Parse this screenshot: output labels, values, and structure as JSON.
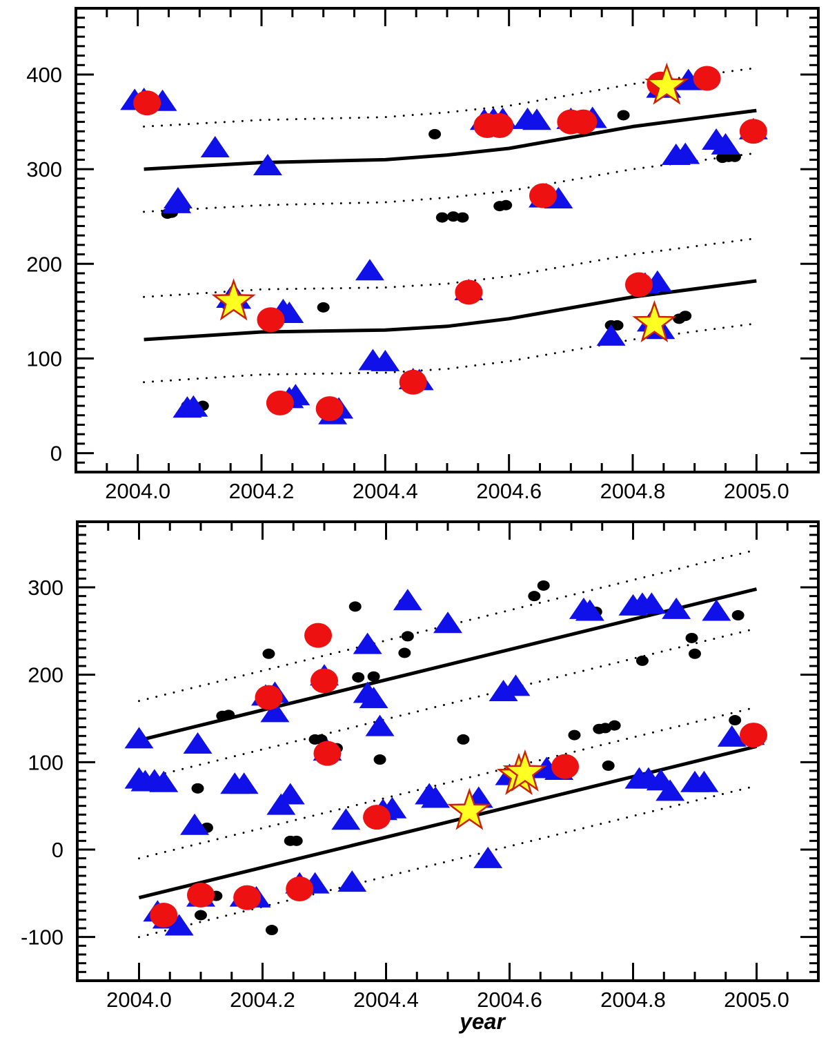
{
  "chart_data": [
    {
      "type": "scatter",
      "title": "",
      "xlabel": "",
      "ylabel": "",
      "xlim": [
        2003.9,
        2005.1
      ],
      "ylim": [
        -20,
        470
      ],
      "x_ticks": [
        "2004.0",
        "2004.2",
        "2004.4",
        "2004.6",
        "2004.8",
        "2005.0"
      ],
      "y_ticks": [
        "0",
        "100",
        "200",
        "300",
        "400"
      ],
      "y_tick_values": [
        0,
        100,
        200,
        300,
        400
      ],
      "x_tick_values": [
        2004.0,
        2004.2,
        2004.4,
        2004.6,
        2004.8,
        2005.0
      ],
      "colors": {
        "triangle": "#1010e8",
        "circle": "#ee1111",
        "star_fill": "#ffff22",
        "star_edge": "#cc2200",
        "dot": "#000000"
      },
      "lines": [
        {
          "name": "fit-upper",
          "style": "solid",
          "x": [
            2004.01,
            2004.2,
            2004.4,
            2004.5,
            2004.6,
            2004.8,
            2005.0
          ],
          "y": [
            300,
            307,
            310,
            315,
            322,
            345,
            362
          ]
        },
        {
          "name": "fit-lower",
          "style": "solid",
          "x": [
            2004.01,
            2004.2,
            2004.4,
            2004.5,
            2004.6,
            2004.8,
            2005.0
          ],
          "y": [
            120,
            128,
            130,
            134,
            142,
            165,
            182
          ]
        },
        {
          "name": "band-upper-top",
          "style": "dotted",
          "x": [
            2004.01,
            2004.2,
            2004.4,
            2004.5,
            2004.6,
            2004.8,
            2005.0
          ],
          "y": [
            345,
            352,
            355,
            360,
            367,
            390,
            407
          ]
        },
        {
          "name": "band-upper-bottom",
          "style": "dotted",
          "x": [
            2004.01,
            2004.2,
            2004.4,
            2004.5,
            2004.6,
            2004.8,
            2005.0
          ],
          "y": [
            255,
            262,
            265,
            270,
            277,
            300,
            317
          ]
        },
        {
          "name": "band-lower-top",
          "style": "dotted",
          "x": [
            2004.01,
            2004.2,
            2004.4,
            2004.5,
            2004.6,
            2004.8,
            2005.0
          ],
          "y": [
            165,
            173,
            175,
            179,
            187,
            210,
            227
          ]
        },
        {
          "name": "band-lower-bottom",
          "style": "dotted",
          "x": [
            2004.01,
            2004.2,
            2004.4,
            2004.5,
            2004.6,
            2004.8,
            2005.0
          ],
          "y": [
            75,
            83,
            85,
            89,
            97,
            120,
            137
          ]
        }
      ],
      "series": [
        {
          "name": "triangles",
          "marker": "triangle",
          "points": [
            [
              2003.995,
              372
            ],
            [
              2004.01,
              373
            ],
            [
              2004.04,
              371
            ],
            [
              2004.063,
              263
            ],
            [
              2004.065,
              268
            ],
            [
              2004.08,
              47
            ],
            [
              2004.09,
              48
            ],
            [
              2004.125,
              322
            ],
            [
              2004.15,
              163
            ],
            [
              2004.16,
              162
            ],
            [
              2004.21,
              303
            ],
            [
              2004.235,
              150
            ],
            [
              2004.245,
              147
            ],
            [
              2004.245,
              57
            ],
            [
              2004.255,
              60
            ],
            [
              2004.315,
              40
            ],
            [
              2004.325,
              46
            ],
            [
              2004.375,
              192
            ],
            [
              2004.38,
              97
            ],
            [
              2004.4,
              96
            ],
            [
              2004.445,
              77
            ],
            [
              2004.455,
              76
            ],
            [
              2004.535,
              171
            ],
            [
              2004.56,
              351
            ],
            [
              2004.575,
              352
            ],
            [
              2004.59,
              352
            ],
            [
              2004.63,
              352
            ],
            [
              2004.645,
              351
            ],
            [
              2004.655,
              269
            ],
            [
              2004.68,
              268
            ],
            [
              2004.7,
              352
            ],
            [
              2004.735,
              353
            ],
            [
              2004.765,
              123
            ],
            [
              2004.82,
              178
            ],
            [
              2004.83,
              138
            ],
            [
              2004.84,
              180
            ],
            [
              2004.845,
              130
            ],
            [
              2004.845,
              385
            ],
            [
              2004.855,
              385
            ],
            [
              2004.87,
              314
            ],
            [
              2004.885,
              315
            ],
            [
              2004.89,
              393
            ],
            [
              2004.935,
              330
            ],
            [
              2004.95,
              325
            ],
            [
              2004.995,
              341
            ]
          ]
        },
        {
          "name": "circles",
          "marker": "circle",
          "points": [
            [
              2004.015,
              370
            ],
            [
              2004.215,
              141
            ],
            [
              2004.23,
              53
            ],
            [
              2004.31,
              47
            ],
            [
              2004.445,
              75
            ],
            [
              2004.535,
              170
            ],
            [
              2004.565,
              346
            ],
            [
              2004.585,
              346
            ],
            [
              2004.655,
              272
            ],
            [
              2004.7,
              350
            ],
            [
              2004.72,
              350
            ],
            [
              2004.81,
              178
            ],
            [
              2004.845,
              390
            ],
            [
              2004.92,
              396
            ],
            [
              2004.995,
              340
            ]
          ]
        },
        {
          "name": "stars",
          "marker": "star",
          "points": [
            [
              2004.155,
              160
            ],
            [
              2004.835,
              137
            ],
            [
              2004.855,
              388
            ]
          ]
        },
        {
          "name": "dots",
          "marker": "dot",
          "points": [
            [
              2004.048,
              253
            ],
            [
              2004.055,
              254
            ],
            [
              2004.08,
              50
            ],
            [
              2004.105,
              50
            ],
            [
              2004.3,
              154
            ],
            [
              2004.48,
              337
            ],
            [
              2004.492,
              249
            ],
            [
              2004.51,
              250
            ],
            [
              2004.525,
              249
            ],
            [
              2004.585,
              261
            ],
            [
              2004.595,
              262
            ],
            [
              2004.765,
              135
            ],
            [
              2004.775,
              135
            ],
            [
              2004.785,
              357
            ],
            [
              2004.875,
              142
            ],
            [
              2004.885,
              145
            ],
            [
              2004.945,
              312
            ],
            [
              2004.955,
              313
            ],
            [
              2004.965,
              313
            ]
          ]
        }
      ]
    },
    {
      "type": "scatter",
      "title": "",
      "xlabel": "year",
      "ylabel": "",
      "xlim": [
        2003.9,
        2005.1
      ],
      "ylim": [
        -150,
        375
      ],
      "x_ticks": [
        "2004.0",
        "2004.2",
        "2004.4",
        "2004.6",
        "2004.8",
        "2005.0"
      ],
      "y_ticks": [
        "-100",
        "0",
        "100",
        "200",
        "300"
      ],
      "y_tick_values": [
        -100,
        0,
        100,
        200,
        300
      ],
      "x_tick_values": [
        2004.0,
        2004.2,
        2004.4,
        2004.6,
        2004.8,
        2005.0
      ],
      "colors": {
        "triangle": "#1010e8",
        "circle": "#ee1111",
        "star_fill": "#ffff22",
        "star_edge": "#cc2200",
        "dot": "#000000"
      },
      "lines": [
        {
          "name": "fit-upper",
          "style": "solid",
          "x": [
            2004.0,
            2005.0
          ],
          "y": [
            125,
            298
          ]
        },
        {
          "name": "fit-lower",
          "style": "solid",
          "x": [
            2004.0,
            2005.0
          ],
          "y": [
            -55,
            118
          ]
        },
        {
          "name": "band-upper-top",
          "style": "dotted",
          "x": [
            2004.0,
            2005.0
          ],
          "y": [
            170,
            343
          ]
        },
        {
          "name": "band-upper-bottom",
          "style": "dotted",
          "x": [
            2004.0,
            2005.0
          ],
          "y": [
            80,
            253
          ]
        },
        {
          "name": "band-lower-top",
          "style": "dotted",
          "x": [
            2004.0,
            2005.0
          ],
          "y": [
            -10,
            163
          ]
        },
        {
          "name": "band-lower-bottom",
          "style": "dotted",
          "x": [
            2004.0,
            2005.0
          ],
          "y": [
            -100,
            73
          ]
        }
      ],
      "series": [
        {
          "name": "triangles",
          "marker": "triangle",
          "points": [
            [
              2004.0,
              126
            ],
            [
              2004.0,
              80
            ],
            [
              2004.01,
              77
            ],
            [
              2004.025,
              78
            ],
            [
              2004.04,
              76
            ],
            [
              2004.03,
              -72
            ],
            [
              2004.045,
              -80
            ],
            [
              2004.065,
              -88
            ],
            [
              2004.095,
              120
            ],
            [
              2004.09,
              27
            ],
            [
              2004.1,
              -55
            ],
            [
              2004.155,
              74
            ],
            [
              2004.17,
              74
            ],
            [
              2004.17,
              -55
            ],
            [
              2004.19,
              -56
            ],
            [
              2004.205,
              175
            ],
            [
              2004.22,
              178
            ],
            [
              2004.22,
              156
            ],
            [
              2004.23,
              50
            ],
            [
              2004.245,
              62
            ],
            [
              2004.26,
              -40
            ],
            [
              2004.285,
              -40
            ],
            [
              2004.3,
              198
            ],
            [
              2004.305,
              112
            ],
            [
              2004.335,
              33
            ],
            [
              2004.37,
              234
            ],
            [
              2004.37,
              178
            ],
            [
              2004.38,
              172
            ],
            [
              2004.39,
              140
            ],
            [
              2004.345,
              -38
            ],
            [
              2004.395,
              44
            ],
            [
              2004.41,
              46
            ],
            [
              2004.435,
              284
            ],
            [
              2004.47,
              62
            ],
            [
              2004.48,
              58
            ],
            [
              2004.5,
              258
            ],
            [
              2004.55,
              58
            ],
            [
              2004.565,
              -11
            ],
            [
              2004.59,
              180
            ],
            [
              2004.61,
              186
            ],
            [
              2004.6,
              84
            ],
            [
              2004.66,
              92
            ],
            [
              2004.68,
              90
            ],
            [
              2004.72,
              274
            ],
            [
              2004.73,
              272
            ],
            [
              2004.8,
              278
            ],
            [
              2004.815,
              280
            ],
            [
              2004.83,
              280
            ],
            [
              2004.81,
              80
            ],
            [
              2004.825,
              80
            ],
            [
              2004.845,
              78
            ],
            [
              2004.86,
              66
            ],
            [
              2004.87,
              274
            ],
            [
              2004.9,
              76
            ],
            [
              2004.915,
              76
            ],
            [
              2004.935,
              272
            ],
            [
              2004.96,
              128
            ],
            [
              2004.99,
              130
            ]
          ]
        },
        {
          "name": "circles",
          "marker": "circle",
          "points": [
            [
              2004.04,
              -75
            ],
            [
              2004.1,
              -52
            ],
            [
              2004.175,
              -55
            ],
            [
              2004.21,
              174
            ],
            [
              2004.26,
              -45
            ],
            [
              2004.29,
              245
            ],
            [
              2004.3,
              193
            ],
            [
              2004.305,
              110
            ],
            [
              2004.385,
              37
            ],
            [
              2004.69,
              95
            ],
            [
              2004.995,
              131
            ]
          ]
        },
        {
          "name": "stars",
          "marker": "star",
          "points": [
            [
              2004.535,
              44
            ],
            [
              2004.615,
              84
            ],
            [
              2004.625,
              88
            ]
          ]
        },
        {
          "name": "dots",
          "marker": "dot",
          "points": [
            [
              2004.04,
              -72
            ],
            [
              2004.095,
              70
            ],
            [
              2004.1,
              -75
            ],
            [
              2004.11,
              25
            ],
            [
              2004.125,
              -53
            ],
            [
              2004.135,
              153
            ],
            [
              2004.145,
              154
            ],
            [
              2004.21,
              224
            ],
            [
              2004.215,
              -92
            ],
            [
              2004.245,
              10
            ],
            [
              2004.255,
              10
            ],
            [
              2004.285,
              126
            ],
            [
              2004.295,
              126
            ],
            [
              2004.32,
              116
            ],
            [
              2004.35,
              278
            ],
            [
              2004.355,
              197
            ],
            [
              2004.38,
              198
            ],
            [
              2004.39,
              103
            ],
            [
              2004.43,
              282
            ],
            [
              2004.435,
              244
            ],
            [
              2004.43,
              225
            ],
            [
              2004.525,
              126
            ],
            [
              2004.64,
              290
            ],
            [
              2004.655,
              302
            ],
            [
              2004.705,
              131
            ],
            [
              2004.72,
              272
            ],
            [
              2004.74,
              272
            ],
            [
              2004.745,
              138
            ],
            [
              2004.755,
              139
            ],
            [
              2004.77,
              142
            ],
            [
              2004.76,
              96
            ],
            [
              2004.815,
              216
            ],
            [
              2004.895,
              242
            ],
            [
              2004.9,
              224
            ],
            [
              2004.965,
              148
            ],
            [
              2004.97,
              268
            ]
          ]
        }
      ]
    }
  ]
}
